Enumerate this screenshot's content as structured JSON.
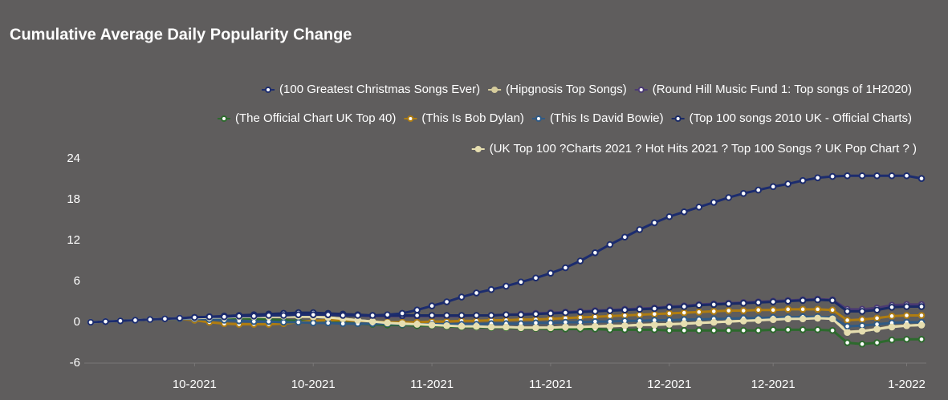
{
  "chart_data": {
    "type": "line",
    "title": "Cumulative Average Daily Popularity Change",
    "categories": [
      null,
      null,
      null,
      null,
      null,
      null,
      null,
      "10-2021",
      null,
      null,
      null,
      null,
      null,
      null,
      null,
      "10-2021",
      null,
      null,
      null,
      null,
      null,
      null,
      null,
      "11-2021",
      null,
      null,
      null,
      null,
      null,
      null,
      null,
      "11-2021",
      null,
      null,
      null,
      null,
      null,
      null,
      null,
      "12-2021",
      null,
      null,
      null,
      null,
      null,
      null,
      "12-2021",
      null,
      null,
      null,
      null,
      null,
      null,
      null,
      null,
      "1-2022",
      null
    ],
    "ylim": [
      -6,
      24
    ],
    "yticks": [
      -6,
      0,
      6,
      12,
      18,
      24
    ],
    "grid": false,
    "series": [
      {
        "name": "(100 Greatest Christmas Songs Ever)",
        "color": "#1c2c6e",
        "values": [
          0,
          0.1,
          0.2,
          0.3,
          0.4,
          0.5,
          0.6,
          0.7,
          0.8,
          0.8,
          0.9,
          0.9,
          1.0,
          1.0,
          1.1,
          1.1,
          1.1,
          1.0,
          1.0,
          1.0,
          1.1,
          1.3,
          1.8,
          2.4,
          3.0,
          3.7,
          4.3,
          4.8,
          5.3,
          5.9,
          6.5,
          7.2,
          8.0,
          9.0,
          10.2,
          11.4,
          12.5,
          13.6,
          14.6,
          15.5,
          16.2,
          16.9,
          17.6,
          18.3,
          18.9,
          19.4,
          19.9,
          20.3,
          20.8,
          21.2,
          21.4,
          21.5,
          21.5,
          21.5,
          21.5,
          21.5,
          21.1
        ]
      },
      {
        "name": "(Hipgnosis Top Songs)",
        "color": "#d6cc9c",
        "values": [
          0,
          0.1,
          0.2,
          0.3,
          0.4,
          0.5,
          0.5,
          0.6,
          0.6,
          0.7,
          0.7,
          0.7,
          0.8,
          0.8,
          0.8,
          0.8,
          0.7,
          0.5,
          0.3,
          0.1,
          0,
          -0.2,
          -0.3,
          -0.4,
          -0.5,
          -0.6,
          -0.7,
          -0.7,
          -0.8,
          -0.8,
          -0.8,
          -0.8,
          -0.7,
          -0.7,
          -0.6,
          -0.5,
          -0.5,
          -0.4,
          -0.3,
          -0.3,
          -0.2,
          -0.1,
          0,
          0.1,
          0.2,
          0.3,
          0.4,
          0.5,
          0.6,
          0.7,
          0.6,
          -1.4,
          -1.3,
          -1.0,
          -0.6,
          -0.5,
          -0.4
        ]
      },
      {
        "name": "(Round Hill Music Fund 1: Top songs of 1H2020)",
        "color": "#4b3a73",
        "values": [
          0,
          0.1,
          0.2,
          0.3,
          0.4,
          0.5,
          0.6,
          0.7,
          0.8,
          0.9,
          1.0,
          1.1,
          1.2,
          1.3,
          1.3,
          1.3,
          1.2,
          1.1,
          1.0,
          0.9,
          0.9,
          0.9,
          0.9,
          0.9,
          0.9,
          0.9,
          1.0,
          1.0,
          1.1,
          1.2,
          1.3,
          1.4,
          1.5,
          1.6,
          1.7,
          1.8,
          1.9,
          2.0,
          2.1,
          2.3,
          2.4,
          2.6,
          2.7,
          2.8,
          2.9,
          3.0,
          3.1,
          3.2,
          3.3,
          3.4,
          3.3,
          1.9,
          1.9,
          2.1,
          2.5,
          2.6,
          2.6
        ]
      },
      {
        "name": "(The Official Chart UK Top 40)",
        "color": "#2d6a2d",
        "values": [
          0,
          0.1,
          0.2,
          0.3,
          0.4,
          0.5,
          0.5,
          0.6,
          0.6,
          0.6,
          0.6,
          0.5,
          0.4,
          0.3,
          0.2,
          0.1,
          0,
          -0.1,
          -0.2,
          -0.3,
          -0.4,
          -0.4,
          -0.5,
          -0.5,
          -0.6,
          -0.7,
          -0.7,
          -0.8,
          -0.8,
          -0.9,
          -0.9,
          -1.0,
          -1.0,
          -1.0,
          -1.0,
          -1.1,
          -1.1,
          -1.1,
          -1.1,
          -1.2,
          -1.2,
          -1.2,
          -1.2,
          -1.2,
          -1.2,
          -1.2,
          -1.1,
          -1.1,
          -1.1,
          -1.1,
          -1.2,
          -3.0,
          -3.2,
          -3.0,
          -2.6,
          -2.5,
          -2.5
        ]
      },
      {
        "name": "(This Is Bob Dylan)",
        "color": "#b07d10",
        "values": [
          0,
          0.1,
          0.2,
          0.3,
          0.4,
          0.5,
          0.5,
          0.3,
          0.0,
          -0.2,
          -0.3,
          -0.3,
          -0.3,
          -0.2,
          0.0,
          0.2,
          0.3,
          0.3,
          0.2,
          0.1,
          0,
          0,
          0,
          0.1,
          0.1,
          0.2,
          0.2,
          0.3,
          0.3,
          0.4,
          0.4,
          0.5,
          0.6,
          0.7,
          0.8,
          0.9,
          1.0,
          1.1,
          1.2,
          1.3,
          1.4,
          1.5,
          1.6,
          1.7,
          1.7,
          1.8,
          1.8,
          1.9,
          1.9,
          1.9,
          1.8,
          0.3,
          0.4,
          0.6,
          0.9,
          1.0,
          1.0
        ]
      },
      {
        "name": "(This Is David Bowie)",
        "color": "#2f5a85",
        "values": [
          0,
          0.1,
          0.2,
          0.3,
          0.4,
          0.5,
          0.5,
          0.5,
          0.4,
          0.3,
          0.2,
          0.1,
          0.1,
          0.0,
          0.0,
          -0.1,
          -0.1,
          -0.2,
          -0.2,
          -0.2,
          -0.2,
          -0.3,
          -0.3,
          -0.3,
          -0.3,
          -0.3,
          -0.3,
          -0.2,
          -0.2,
          -0.2,
          -0.1,
          -0.1,
          0,
          0,
          0.1,
          0.1,
          0.2,
          0.2,
          0.3,
          0.3,
          0.4,
          0.4,
          0.5,
          0.5,
          0.6,
          0.6,
          0.7,
          0.7,
          0.8,
          0.8,
          0.7,
          -0.6,
          -0.5,
          -0.3,
          -0.1,
          0,
          0
        ]
      },
      {
        "name": "(Top 100 songs 2010 UK - Official Charts)",
        "color": "#1a2a66",
        "values": [
          0,
          0.1,
          0.2,
          0.3,
          0.4,
          0.5,
          0.6,
          0.7,
          0.8,
          0.9,
          1.0,
          1.1,
          1.2,
          1.3,
          1.4,
          1.4,
          1.3,
          1.2,
          1.1,
          1.0,
          1.0,
          1.0,
          1.0,
          1.0,
          1.0,
          1.0,
          1.0,
          1.0,
          1.1,
          1.1,
          1.2,
          1.3,
          1.4,
          1.5,
          1.6,
          1.7,
          1.8,
          1.9,
          2.0,
          2.2,
          2.3,
          2.5,
          2.6,
          2.7,
          2.8,
          2.9,
          3.0,
          3.1,
          3.2,
          3.3,
          3.2,
          1.6,
          1.6,
          1.8,
          2.2,
          2.3,
          2.3
        ]
      },
      {
        "name": "(UK Top 100 ?Charts 2021 ? Hot Hits 2021 ? Top 100 Songs ? UK Pop Chart ? )",
        "color": "#e6deb0",
        "values": [
          0,
          0.1,
          0.2,
          0.3,
          0.4,
          0.5,
          0.6,
          0.6,
          0.7,
          0.7,
          0.8,
          0.8,
          0.8,
          0.9,
          0.9,
          0.8,
          0.7,
          0.5,
          0.3,
          0.1,
          -0.1,
          -0.2,
          -0.3,
          -0.4,
          -0.5,
          -0.6,
          -0.6,
          -0.7,
          -0.7,
          -0.8,
          -0.8,
          -0.8,
          -0.7,
          -0.7,
          -0.6,
          -0.6,
          -0.5,
          -0.4,
          -0.4,
          -0.3,
          -0.2,
          -0.1,
          0,
          0.1,
          0.2,
          0.3,
          0.4,
          0.5,
          0.5,
          0.6,
          0.5,
          -1.5,
          -1.3,
          -1.0,
          -0.7,
          -0.5,
          -0.4
        ]
      }
    ]
  }
}
